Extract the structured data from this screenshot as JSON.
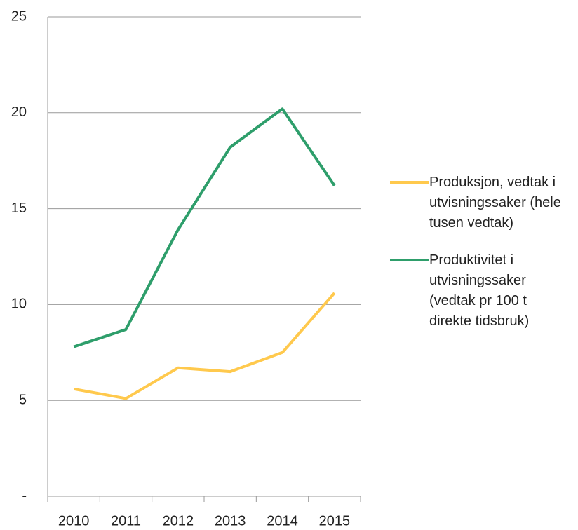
{
  "chart_data": {
    "type": "line",
    "categories": [
      "2010",
      "2011",
      "2012",
      "2013",
      "2014",
      "2015"
    ],
    "series": [
      {
        "name": "Produksjon, vedtak i utvisningssaker (hele tusen vedtak)",
        "color": "#ffc94d",
        "values": [
          5.6,
          5.1,
          6.7,
          6.5,
          7.5,
          10.6
        ]
      },
      {
        "name": "Produktivitet i utvisningssaker (vedtak pr 100 t direkte tidsbruk)",
        "color": "#2e9e6b",
        "values": [
          7.8,
          8.7,
          13.9,
          18.2,
          20.2,
          16.2
        ]
      }
    ],
    "ylim": [
      0,
      25
    ],
    "yticks": [
      {
        "value": 0,
        "label": "-"
      },
      5,
      10,
      15,
      20,
      25
    ],
    "grid": true,
    "legend": "right"
  }
}
